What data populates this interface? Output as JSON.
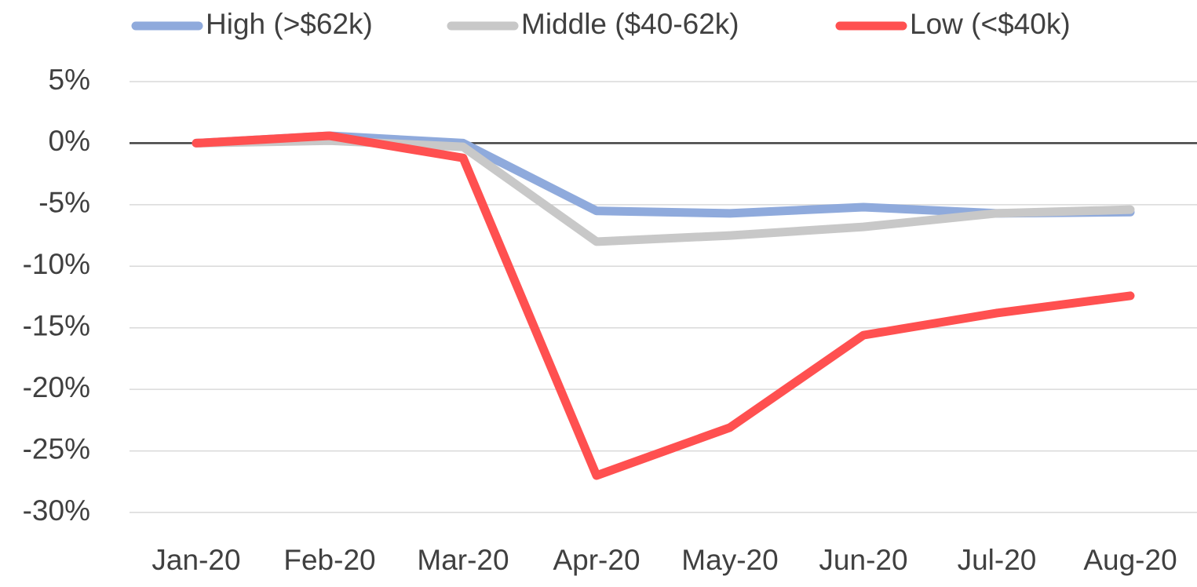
{
  "chart_data": {
    "type": "line",
    "categories": [
      "Jan-20",
      "Feb-20",
      "Mar-20",
      "Apr-20",
      "May-20",
      "Jun-20",
      "Jul-20",
      "Aug-20"
    ],
    "series": [
      {
        "name": "High (>$62k)",
        "color": "#8faadc",
        "values": [
          0,
          0.6,
          0,
          -5.5,
          -5.7,
          -5.2,
          -5.7,
          -5.6
        ]
      },
      {
        "name": "Middle ($40-62k)",
        "color": "#c8c8c8",
        "values": [
          0,
          0.2,
          -0.3,
          -8.0,
          -7.5,
          -6.8,
          -5.7,
          -5.4
        ]
      },
      {
        "name": "Low (<$40k)",
        "color": "#ff5050",
        "values": [
          0,
          0.6,
          -1.2,
          -27.0,
          -23.1,
          -15.6,
          -13.8,
          -12.4
        ]
      }
    ],
    "ylim": [
      -30,
      5
    ],
    "yticks": [
      {
        "value": 5,
        "label": "5%"
      },
      {
        "value": 0,
        "label": "0%"
      },
      {
        "value": -5,
        "label": "-5%"
      },
      {
        "value": -10,
        "label": "-10%"
      },
      {
        "value": -15,
        "label": "-15%"
      },
      {
        "value": -20,
        "label": "-20%"
      },
      {
        "value": -25,
        "label": "-25%"
      },
      {
        "value": -30,
        "label": "-30%"
      }
    ],
    "grid": true,
    "legend": "top"
  }
}
